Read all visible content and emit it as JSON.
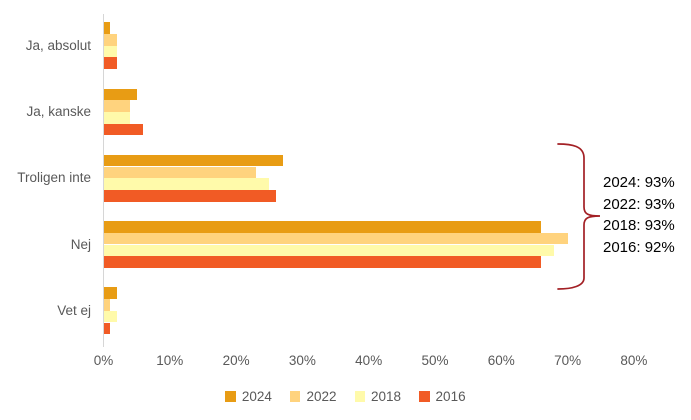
{
  "chart_data": {
    "type": "bar",
    "orientation": "horizontal",
    "title": "",
    "categories": [
      "Ja, absolut",
      "Ja, kanske",
      "Troligen inte",
      "Nej",
      "Vet ej"
    ],
    "series": [
      {
        "name": "2024",
        "color": "#E89C14",
        "values": [
          1,
          5,
          27,
          66,
          2
        ]
      },
      {
        "name": "2022",
        "color": "#FFD37E",
        "values": [
          2,
          4,
          23,
          70,
          1
        ]
      },
      {
        "name": "2018",
        "color": "#FFFAAA",
        "values": [
          2,
          4,
          25,
          68,
          2
        ]
      },
      {
        "name": "2016",
        "color": "#F15B25",
        "values": [
          2,
          6,
          26,
          66,
          1
        ]
      }
    ],
    "x_axis": {
      "ticks": [
        "0%",
        "10%",
        "20%",
        "30%",
        "40%",
        "50%",
        "60%",
        "70%",
        "80%"
      ],
      "min": 0,
      "max": 80,
      "step": 10,
      "unit": "%"
    },
    "legend_position": "bottom",
    "grid": false
  },
  "annotation": {
    "lines": [
      "2024: 93%",
      "2022: 93%",
      "2018: 93%",
      "2016: 92%"
    ],
    "brace_color": "#A32025"
  },
  "colors": {
    "background": "#FFFFFF",
    "text_muted": "#595959",
    "annotation_text": "#000000",
    "axis_line": "#D6D6D6"
  }
}
